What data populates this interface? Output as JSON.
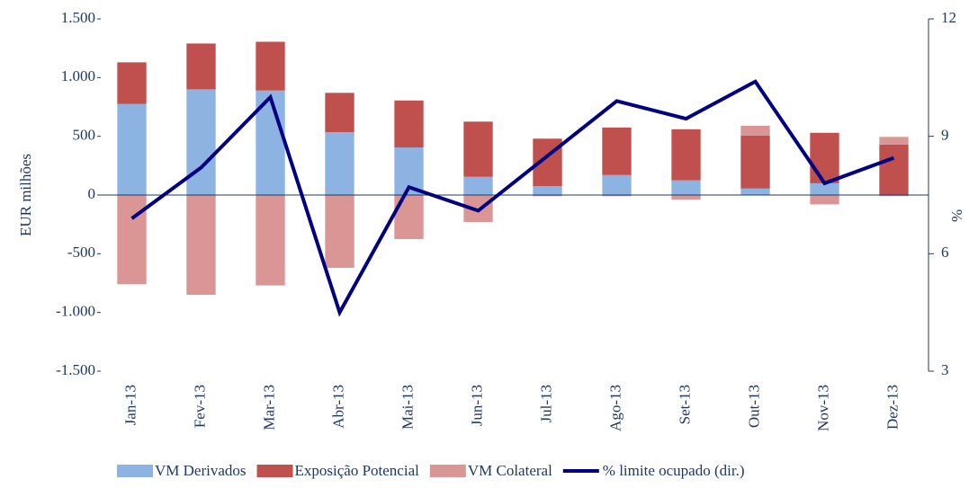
{
  "chart_data": {
    "type": "bar",
    "y_label": "EUR milhões",
    "y2_label": "%",
    "categories": [
      "Jan-13",
      "Fev-13",
      "Mar-13",
      "Abr-13",
      "Mai-13",
      "Jun-13",
      "Jul-13",
      "Ago-13",
      "Set-13",
      "Out-13",
      "Nov-13",
      "Dez-13"
    ],
    "series": [
      {
        "name": "VM Derivados",
        "color": "#8db3e2",
        "values": [
          775,
          900,
          890,
          535,
          405,
          155,
          75,
          170,
          125,
          55,
          100,
          -10
        ]
      },
      {
        "name": "Exposição Potencial",
        "color": "#c0504d",
        "values": [
          355,
          390,
          415,
          335,
          400,
          470,
          405,
          405,
          435,
          450,
          430,
          430
        ]
      },
      {
        "name": "VM Colateral",
        "color": "#d99694",
        "values": [
          -760,
          -850,
          -770,
          -620,
          -375,
          -230,
          -10,
          -10,
          -40,
          85,
          -80,
          65
        ]
      },
      {
        "name": "% limite ocupado (dir.)",
        "color": "#000080",
        "type": "line",
        "axis": "y2",
        "values": [
          6.9,
          8.2,
          10.0,
          4.5,
          7.7,
          7.1,
          8.5,
          9.9,
          9.45,
          10.4,
          7.8,
          8.45
        ]
      }
    ],
    "ylim": [
      -1500,
      1500
    ],
    "yticks": [
      {
        "value": -1500,
        "label": "-1.500"
      },
      {
        "value": -1000,
        "label": "-1.000"
      },
      -500,
      0,
      500,
      {
        "value": 1000,
        "label": "1.000"
      },
      {
        "value": 1500,
        "label": "1.500"
      }
    ],
    "y2lim": [
      3,
      12
    ],
    "y2ticks": [
      3,
      6,
      9,
      12
    ],
    "legend": "bottom"
  }
}
